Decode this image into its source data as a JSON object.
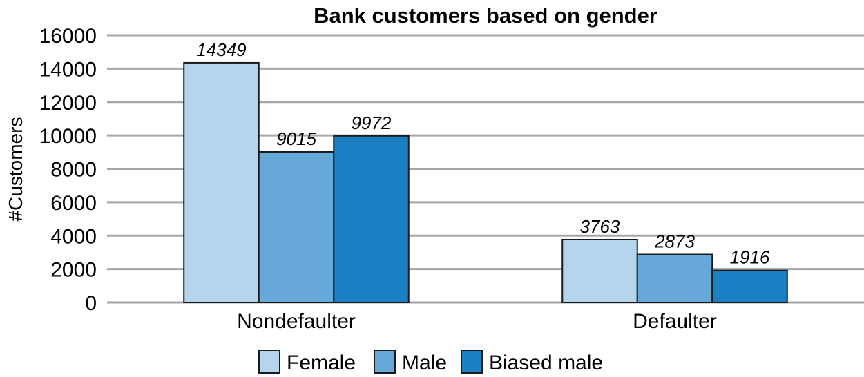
{
  "chart_data": {
    "type": "bar",
    "title": "Bank customers based on gender",
    "xlabel": "",
    "ylabel": "#Customers",
    "categories": [
      "Nondefaulter",
      "Defaulter"
    ],
    "series": [
      {
        "name": "Female",
        "values": [
          14349,
          3763
        ],
        "color": "#b4d5ec"
      },
      {
        "name": "Male",
        "values": [
          9015,
          2873
        ],
        "color": "#66a9d8"
      },
      {
        "name": "Biased male",
        "values": [
          9972,
          1916
        ],
        "color": "#1b7fc4"
      }
    ],
    "ylim": [
      0,
      16000
    ],
    "yticks": [
      0,
      2000,
      4000,
      6000,
      8000,
      10000,
      12000,
      14000,
      16000
    ],
    "data_labels": true,
    "grid": true,
    "legend": "bottom"
  }
}
